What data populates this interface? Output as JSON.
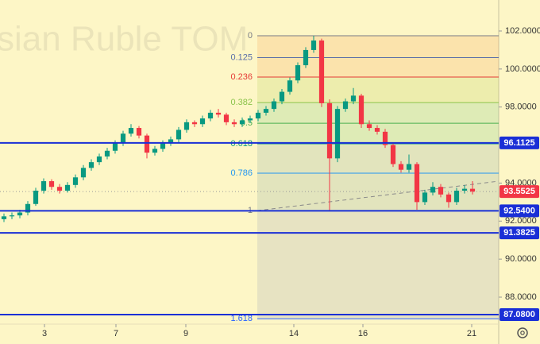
{
  "chart_data": {
    "type": "candlestick",
    "watermark": "sian Ruble TOM",
    "up_color": "#089981",
    "down_color": "#f23645",
    "open": [
      92.1,
      92.25,
      92.3,
      92.45,
      92.9,
      93.6,
      94.1,
      93.8,
      93.6,
      93.9,
      94.3,
      94.8,
      95.1,
      95.4,
      95.7,
      96.1,
      96.6,
      96.9,
      96.5,
      95.6,
      95.8,
      96.1,
      96.3,
      96.8,
      97.2,
      97.1,
      97.4,
      97.7,
      97.6,
      97.2,
      97.1,
      97.3,
      97.4,
      97.7,
      97.9,
      98.3,
      98.8,
      99.4,
      100.2,
      101.0,
      101.5,
      98.2,
      95.3,
      97.9,
      98.3,
      98.6,
      97.1,
      96.9,
      96.7,
      96.0,
      95.0,
      94.7,
      95.0,
      93.0,
      93.5,
      93.8,
      93.4,
      93.0,
      93.6,
      93.7
    ],
    "high": [
      92.4,
      92.45,
      92.6,
      93.05,
      93.75,
      94.25,
      94.2,
      93.95,
      94.05,
      94.45,
      94.95,
      95.25,
      95.55,
      95.85,
      96.25,
      96.75,
      97.1,
      97.0,
      96.6,
      95.95,
      96.25,
      96.45,
      96.95,
      97.35,
      97.3,
      97.55,
      97.85,
      97.9,
      97.7,
      97.35,
      97.45,
      97.55,
      97.85,
      98.05,
      98.45,
      98.95,
      99.55,
      100.35,
      101.15,
      101.75,
      101.6,
      98.4,
      98.05,
      98.45,
      99.0,
      98.7,
      97.3,
      97.05,
      96.85,
      96.1,
      95.15,
      95.5,
      95.1,
      93.65,
      94.05,
      93.95,
      93.5,
      93.75,
      93.9,
      94.1
    ],
    "low": [
      91.95,
      92.1,
      92.15,
      92.3,
      92.8,
      93.45,
      93.65,
      93.45,
      93.5,
      93.75,
      94.15,
      94.65,
      94.95,
      95.25,
      95.55,
      95.95,
      96.45,
      96.35,
      95.3,
      95.45,
      95.65,
      95.95,
      96.15,
      96.65,
      96.95,
      96.95,
      97.25,
      97.45,
      97.05,
      96.95,
      96.95,
      97.15,
      97.25,
      97.55,
      97.75,
      98.15,
      98.65,
      99.25,
      100.05,
      100.85,
      98.0,
      92.55,
      95.1,
      97.75,
      98.15,
      96.9,
      96.75,
      96.55,
      95.85,
      94.85,
      94.55,
      94.55,
      92.6,
      92.85,
      93.35,
      93.25,
      92.7,
      92.85,
      93.45,
      93.4
    ],
    "close": [
      92.25,
      92.3,
      92.45,
      92.9,
      93.6,
      94.1,
      93.8,
      93.6,
      93.9,
      94.3,
      94.8,
      95.1,
      95.4,
      95.7,
      96.1,
      96.6,
      96.9,
      96.5,
      95.6,
      95.8,
      96.1,
      96.3,
      96.8,
      97.2,
      97.1,
      97.4,
      97.7,
      97.6,
      97.2,
      97.1,
      97.3,
      97.4,
      97.7,
      97.9,
      98.3,
      98.8,
      99.4,
      100.2,
      101.0,
      101.5,
      98.2,
      95.3,
      97.9,
      98.3,
      98.6,
      97.1,
      96.9,
      96.7,
      96.0,
      95.0,
      94.7,
      95.0,
      93.0,
      93.5,
      93.8,
      93.4,
      93.0,
      93.6,
      93.7,
      93.5525
    ],
    "xlim": [
      -0.5,
      62.3
    ],
    "xticks": [
      {
        "value": 5.1,
        "label": "3"
      },
      {
        "value": 14.1,
        "label": "7"
      },
      {
        "value": 22.9,
        "label": "9"
      },
      {
        "value": 36.5,
        "label": "14"
      },
      {
        "value": 45.2,
        "label": "16"
      },
      {
        "value": 58.9,
        "label": "21"
      }
    ],
    "ylim": [
      86.58,
      103.63
    ],
    "yticks": [
      {
        "value": 102,
        "label": "102.0000"
      },
      {
        "value": 100,
        "label": "100.0000"
      },
      {
        "value": 98,
        "label": "98.0000"
      },
      {
        "value": 94,
        "label": "94.0000"
      },
      {
        "value": 92,
        "label": "92.0000"
      },
      {
        "value": 90,
        "label": "90.0000"
      },
      {
        "value": 88,
        "label": "88.0000"
      }
    ],
    "fib": {
      "x_start": 31.9,
      "price_0": 101.75,
      "price_1": 92.55,
      "levels": [
        0,
        0.125,
        0.236,
        0.382,
        0.5,
        0.618,
        0.786,
        1,
        1.618
      ],
      "colors": [
        "#787b86",
        "#5b6ea8",
        "#e53935",
        "#8bc34a",
        "#4caf50",
        "#089981",
        "#2196f3",
        "#787b86",
        "#2962ff"
      ],
      "band_colors": [
        "#f7b267",
        "#f7b267",
        "#c5d86d",
        "#8fd18b",
        "#8fd18b",
        "#9fb7a4",
        "#9fb7a4",
        "#b0b3b8"
      ]
    },
    "trendline": [
      92.55,
      94.1
    ],
    "hline_color": "#1a2fd6",
    "hlines": [
      96.1125,
      {
        "value": 92.54,
        "label": "92.5400"
      },
      91.3825,
      {
        "value": 87.08,
        "label": "87.0800"
      }
    ],
    "last_price": 93.5525
  }
}
